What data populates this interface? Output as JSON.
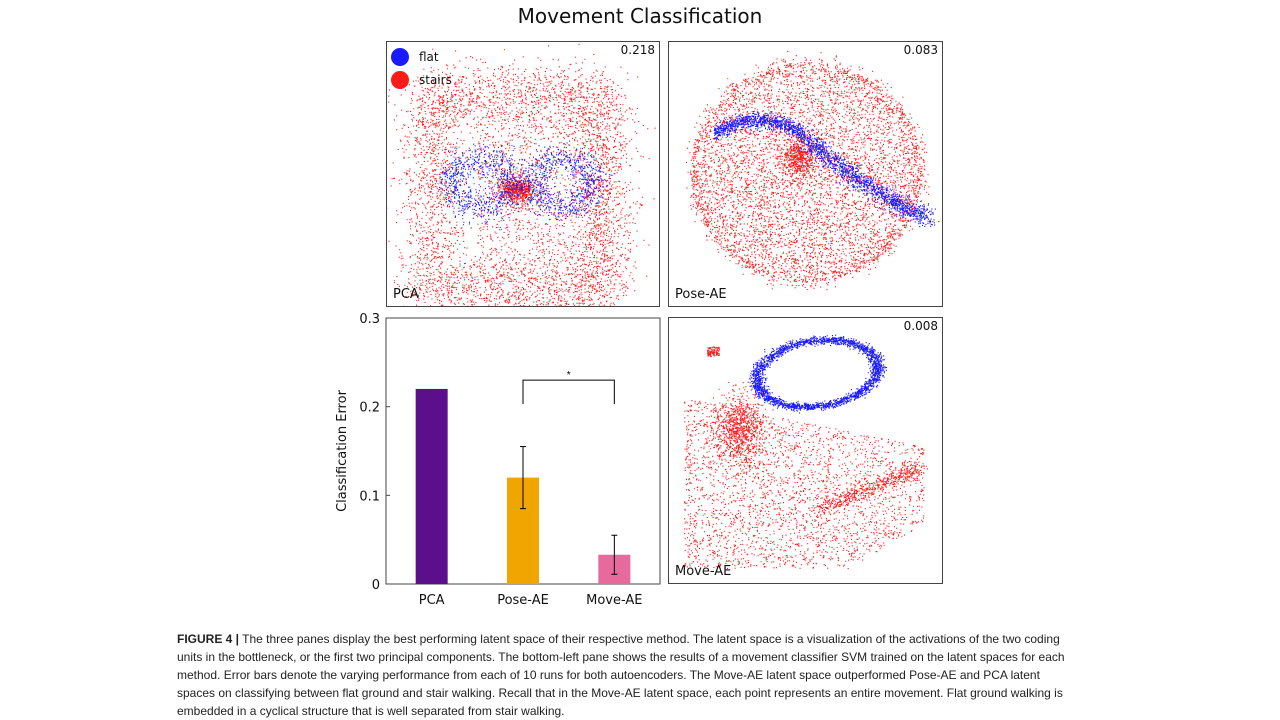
{
  "figure_title": "Movement Classification",
  "legend": [
    {
      "label": "flat",
      "color": "#1a1aff"
    },
    {
      "label": "stairs",
      "color": "#ff1a1a"
    }
  ],
  "panels": {
    "pca": {
      "label": "PCA",
      "score": "0.218"
    },
    "pose_ae": {
      "label": "Pose-AE",
      "score": "0.083"
    },
    "move_ae": {
      "label": "Move-AE",
      "score": "0.008"
    }
  },
  "chart_data": {
    "type": "bar",
    "categories": [
      "PCA",
      "Pose-AE",
      "Move-AE"
    ],
    "values": [
      0.22,
      0.12,
      0.033
    ],
    "error": [
      0,
      0.035,
      0.022
    ],
    "colors": [
      "#5c0f8b",
      "#f0a500",
      "#e8699b"
    ],
    "ylabel": "Classification Error",
    "ylim": [
      0,
      0.3
    ],
    "yticks": [
      "0",
      "0.1",
      "0.2",
      "0.3"
    ],
    "significance": {
      "between": [
        "Pose-AE",
        "Move-AE"
      ],
      "label": "*"
    }
  },
  "caption": {
    "label": "FIGURE 4 |",
    "text": " The three panes display the best performing latent space of their respective method. The latent space is a visualization of the activations of the two coding units in the bottleneck, or the first two principal components. The bottom-left pane shows the results of a movement classifier SVM trained on the latent spaces for each method. Error bars denote the varying performance from each of 10 runs for both autoencoders. The Move-AE latent space outperformed Pose-AE and PCA latent spaces on classifying between flat ground and stair walking. Recall that in the Move-AE latent space, each point represents an entire movement. Flat ground walking is embedded in a cyclical structure that is well separated from stair walking."
  }
}
